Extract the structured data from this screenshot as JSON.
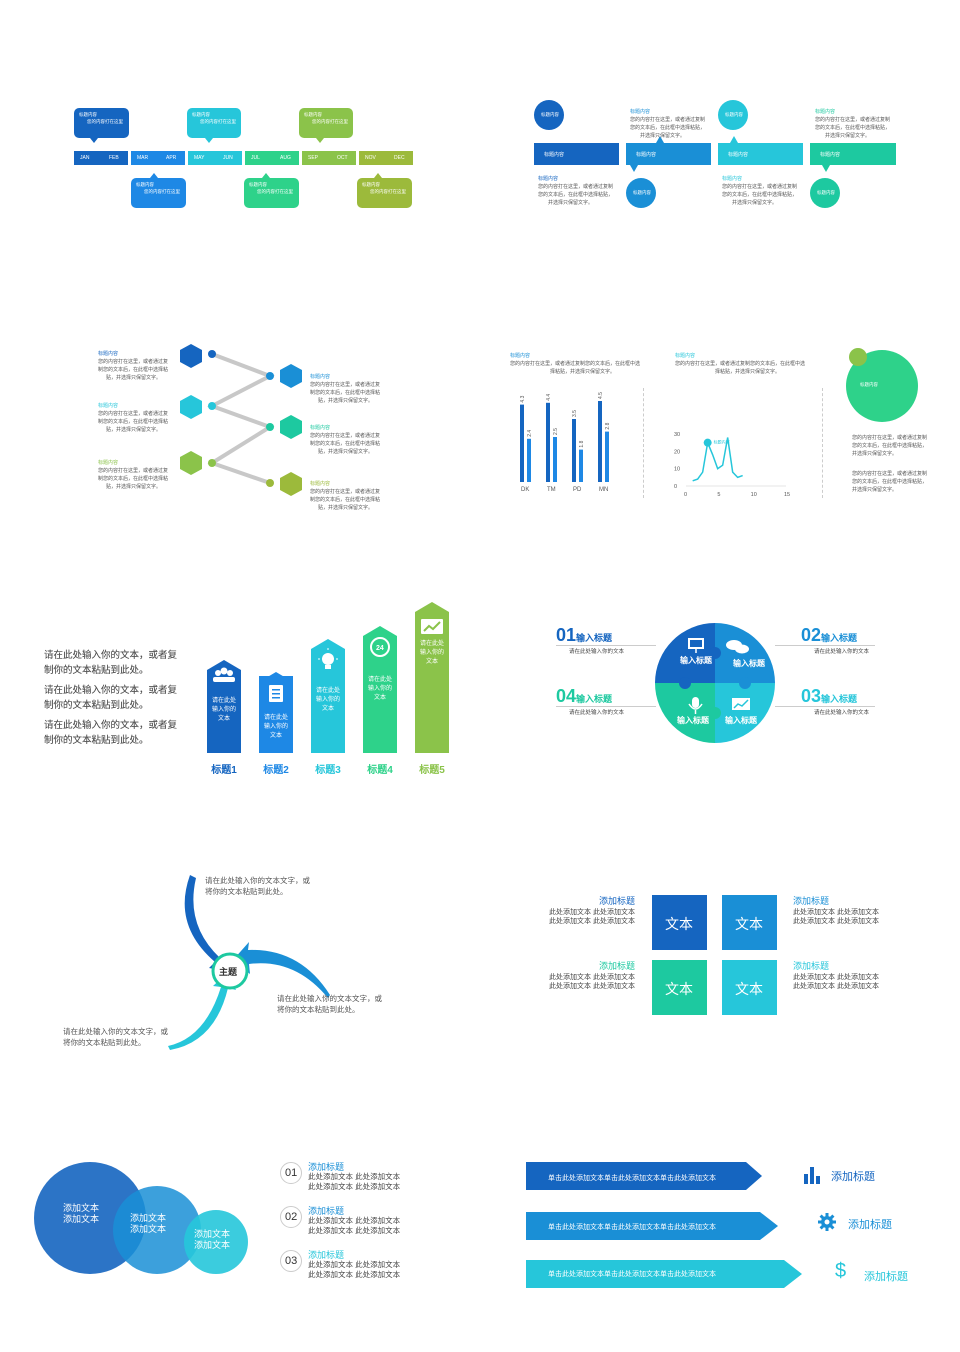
{
  "colors": {
    "blue_dark": "#1565c0",
    "blue": "#1e88e5",
    "blue_mid": "#1a8fd6",
    "cyan": "#26c6da",
    "teal": "#1dc9b0",
    "green": "#2ed28a",
    "lime": "#8bc34a",
    "olive": "#9cba3b"
  },
  "s1": {
    "bubble_title": "标题内容",
    "bubble_text": "您的内容打在这里",
    "months": [
      "JAN",
      "FEB",
      "MAR",
      "APR",
      "MAY",
      "JUN",
      "JUL",
      "AUG",
      "SEP",
      "OCT",
      "NOV",
      "DEC"
    ]
  },
  "s2": {
    "head": "标题内容",
    "para": "您的内容打在这里，或者通过复制您的文本后，在此框中选择粘贴，并选择只保留文字。",
    "para_top_a": "您的内容打在这里，或者通过复制",
    "para_top_b": "您的文本后，在此框中选择粘贴，",
    "para_top_c": "并选择只保留文字。",
    "bar_label": "标题内容",
    "circle_label": "标题内容"
  },
  "s3": {
    "head": "标题内容",
    "line1": "您的内容打在这里，或者通过复",
    "line2": "制您的文本后，在此框中选择粘",
    "line3": "贴，并选择只保留文字。"
  },
  "s4": {
    "head": "标题内容",
    "desc1": "您的内容打在这里，或者通过复制您的文本后，在此框中选",
    "desc2": "择粘贴，并选择只保留文字。",
    "desc_right1": "您的内容打在这里，或者通过复制",
    "desc_right2": "您的文本后，在此框中选择粘贴，",
    "desc_right3": "并选择只保留文字。",
    "line_head": "标题内容",
    "point_label": "标题内容",
    "circle_label": "标题内容"
  },
  "chart_data": [
    {
      "type": "bar",
      "categories": [
        "DK",
        "TM",
        "PD",
        "MN"
      ],
      "series": [
        {
          "values": [
            4.3,
            4.4,
            3.5,
            4.5
          ]
        },
        {
          "values": [
            2.4,
            2.5,
            1.8,
            2.8
          ]
        }
      ],
      "ylim": [
        0,
        5
      ]
    },
    {
      "type": "line",
      "x": [
        0,
        1,
        2,
        3,
        4,
        5,
        6,
        7,
        8,
        9,
        10
      ],
      "y": [
        3,
        4,
        8,
        25,
        18,
        10,
        12,
        28,
        8,
        5,
        6
      ],
      "xticks": [
        0,
        5,
        10,
        15
      ],
      "yticks": [
        0,
        10,
        20,
        30
      ],
      "xlim": [
        0,
        15
      ],
      "ylim": [
        0,
        30
      ]
    }
  ],
  "s5": {
    "para1a": "请在此处输入你的文本，或者复",
    "para1b": "制你的文本粘贴到此处。",
    "para2a": "请在此处输入你的文本，或者复",
    "para2b": "制你的文本粘贴到此处。",
    "para3a": "请在此处输入你的文本，或者复",
    "para3b": "制你的文本粘贴到此处。",
    "cols": [
      {
        "label": "标题1",
        "text": "请在此处\n输入你的\n文本"
      },
      {
        "label": "标题2",
        "text": "请在此处\n输入你的\n文本"
      },
      {
        "label": "标题3",
        "text": "请在此处\n输入你的\n文本"
      },
      {
        "label": "标题4",
        "text": "请在此处\n输入你的\n文本"
      },
      {
        "label": "标题5",
        "text": "请在此处\n输入你的\n文本"
      }
    ]
  },
  "s6": {
    "items": [
      {
        "num": "01",
        "title": "输入标题",
        "desc": "请在此处输入你的文本"
      },
      {
        "num": "02",
        "title": "输入标题",
        "desc": "请在此处输入你的文本"
      },
      {
        "num": "03",
        "title": "输入标题",
        "desc": "请在此处输入你的文本"
      },
      {
        "num": "04",
        "title": "输入标题",
        "desc": "请在此处输入你的文本"
      }
    ],
    "puzzle": [
      "输入标题",
      "输入标题",
      "输入标题",
      "输入标题"
    ]
  },
  "s7": {
    "center": "主题",
    "t1a": "请在此处输入你的文本文字，或",
    "t1b": "将你的文本粘贴到此处。",
    "t2a": "请在此处输入你的文本文字，或",
    "t2b": "将你的文本粘贴到此处。",
    "t3a": "请在此处输入你的文本文字，或",
    "t3b": "将你的文本粘贴到此处。"
  },
  "s8": {
    "title": "添加标题",
    "line": "此处添加文本  此处添加文本",
    "box": "文本"
  },
  "s9": {
    "big1a": "添加文本",
    "big1b": "添加文本",
    "items": [
      {
        "num": "01",
        "title": "添加标题",
        "line": "此处添加文本  此处添加文本"
      },
      {
        "num": "02",
        "title": "添加标题",
        "line": "此处添加文本  此处添加文本"
      },
      {
        "num": "03",
        "title": "添加标题",
        "line": "此处添加文本  此处添加文本"
      }
    ]
  },
  "s10": {
    "arrow_text": "单击此处添加文本单击此处添加文本单击此处添加文本",
    "title": "添加标题"
  }
}
